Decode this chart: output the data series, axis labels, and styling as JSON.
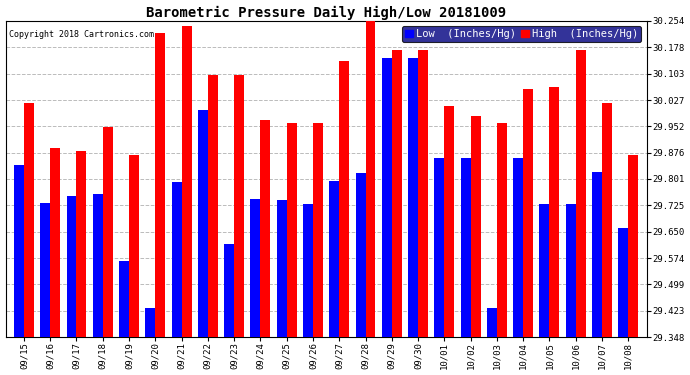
{
  "title": "Barometric Pressure Daily High/Low 20181009",
  "copyright": "Copyright 2018 Cartronics.com",
  "legend_low": "Low  (Inches/Hg)",
  "legend_high": "High  (Inches/Hg)",
  "categories": [
    "09/15",
    "09/16",
    "09/17",
    "09/18",
    "09/19",
    "09/20",
    "09/21",
    "09/22",
    "09/23",
    "09/24",
    "09/25",
    "09/26",
    "09/27",
    "09/28",
    "09/29",
    "09/30",
    "10/01",
    "10/02",
    "10/03",
    "10/04",
    "10/05",
    "10/06",
    "10/07",
    "10/08"
  ],
  "low_values": [
    29.842,
    29.732,
    29.751,
    29.759,
    29.565,
    29.43,
    29.793,
    29.998,
    29.614,
    29.743,
    29.741,
    29.729,
    29.795,
    29.818,
    30.148,
    30.148,
    29.86,
    29.86,
    29.43,
    29.86,
    29.73,
    29.73,
    29.82,
    29.66
  ],
  "high_values": [
    30.02,
    29.89,
    29.88,
    29.95,
    29.87,
    30.22,
    30.24,
    30.1,
    30.1,
    29.97,
    29.96,
    29.96,
    30.14,
    30.255,
    30.17,
    30.17,
    30.01,
    29.98,
    29.96,
    30.06,
    30.065,
    30.17,
    30.02,
    29.87
  ],
  "ylim_min": 29.348,
  "ylim_max": 30.254,
  "yticks": [
    29.348,
    29.423,
    29.499,
    29.574,
    29.65,
    29.725,
    29.801,
    29.876,
    29.952,
    30.027,
    30.103,
    30.178,
    30.254
  ],
  "bar_width": 0.38,
  "low_color": "#0000ff",
  "high_color": "#ff0000",
  "bg_color": "#ffffff",
  "grid_color": "#bbbbbb",
  "title_fontsize": 10,
  "tick_fontsize": 6.5,
  "legend_fontsize": 7.5
}
